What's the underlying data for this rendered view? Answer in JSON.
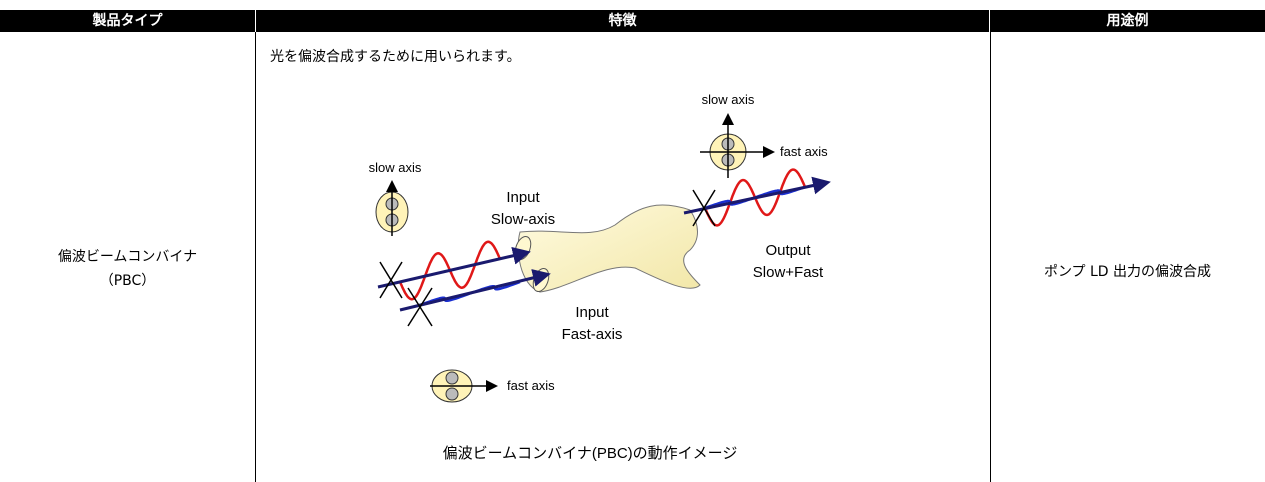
{
  "table": {
    "headers": [
      "製品タイプ",
      "特徴",
      "用途例"
    ],
    "rows": [
      {
        "product": [
          "偏波ビームコンバイナ",
          "（PBC）"
        ],
        "feature": "光を偏波合成するために用いられます。",
        "usage": "ポンプ LD 出力の偏波合成"
      }
    ]
  },
  "figure": {
    "labels": {
      "slow_axis_in": "slow axis",
      "fast_axis_in": "fast axis",
      "slow_axis_out": "slow axis",
      "fast_axis_out": "fast axis",
      "input_slow": [
        "Input",
        "Slow-axis"
      ],
      "input_fast": [
        "Input",
        "Fast-axis"
      ],
      "output": [
        "Output",
        "Slow+Fast"
      ]
    },
    "caption": "偏波ビームコンバイナ(PBC)の動作イメージ"
  }
}
